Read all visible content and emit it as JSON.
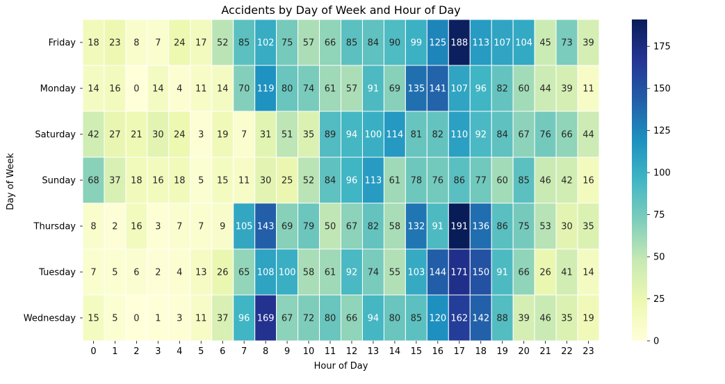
{
  "chart_data": {
    "type": "heatmap",
    "title": "Accidents by Day of Week and Hour of Day",
    "xlabel": "Hour of Day",
    "ylabel": "Day of Week",
    "rows": [
      "Friday",
      "Monday",
      "Saturday",
      "Sunday",
      "Thursday",
      "Tuesday",
      "Wednesday"
    ],
    "columns": [
      "0",
      "1",
      "2",
      "3",
      "4",
      "5",
      "6",
      "7",
      "8",
      "9",
      "10",
      "11",
      "12",
      "13",
      "14",
      "15",
      "16",
      "17",
      "18",
      "19",
      "20",
      "21",
      "22",
      "23"
    ],
    "values": [
      [
        18,
        23,
        8,
        7,
        24,
        17,
        52,
        85,
        102,
        75,
        57,
        66,
        85,
        84,
        90,
        99,
        125,
        188,
        113,
        107,
        104,
        45,
        73,
        39
      ],
      [
        14,
        16,
        0,
        14,
        4,
        11,
        14,
        70,
        119,
        80,
        74,
        61,
        57,
        91,
        69,
        135,
        141,
        107,
        96,
        82,
        60,
        44,
        39,
        11
      ],
      [
        42,
        27,
        21,
        30,
        24,
        3,
        19,
        7,
        31,
        51,
        35,
        89,
        94,
        100,
        114,
        81,
        82,
        110,
        92,
        84,
        67,
        76,
        66,
        44
      ],
      [
        68,
        37,
        18,
        16,
        18,
        5,
        15,
        11,
        30,
        25,
        52,
        84,
        96,
        113,
        61,
        78,
        76,
        86,
        77,
        60,
        85,
        46,
        42,
        16
      ],
      [
        8,
        2,
        16,
        3,
        7,
        7,
        9,
        105,
        143,
        69,
        79,
        50,
        67,
        82,
        58,
        132,
        91,
        191,
        136,
        86,
        75,
        53,
        30,
        35
      ],
      [
        7,
        5,
        6,
        2,
        4,
        13,
        26,
        65,
        108,
        100,
        58,
        61,
        92,
        74,
        55,
        103,
        144,
        171,
        150,
        91,
        66,
        26,
        41,
        14
      ],
      [
        15,
        5,
        0,
        1,
        3,
        11,
        37,
        96,
        169,
        67,
        72,
        80,
        66,
        94,
        80,
        85,
        120,
        162,
        142,
        88,
        39,
        46,
        35,
        19
      ]
    ],
    "colormap": "YlGnBu",
    "vmin": 0,
    "vmax": 191,
    "colorbar_ticks": [
      0,
      25,
      50,
      75,
      100,
      125,
      150,
      175
    ],
    "annotated": true
  }
}
